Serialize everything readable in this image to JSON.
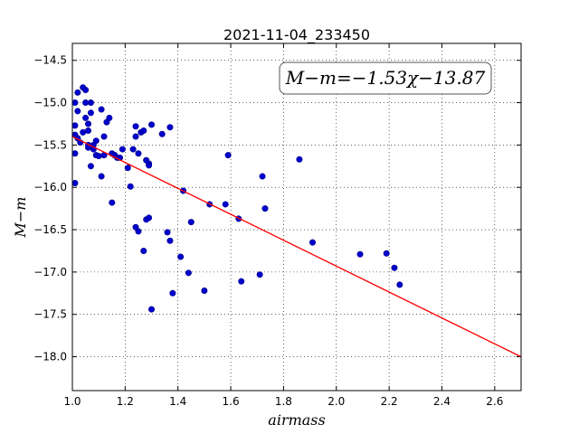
{
  "chart_data": {
    "type": "scatter",
    "title": "2021-11-04_233450",
    "xlabel": "airmass",
    "ylabel": "M−m",
    "xlim": [
      1.0,
      2.7
    ],
    "ylim": [
      -18.4,
      -14.3
    ],
    "y_inverted": true,
    "grid": true,
    "x_ticks": [
      1.0,
      1.2,
      1.4,
      1.6,
      1.8,
      2.0,
      2.2,
      2.4,
      2.6
    ],
    "x_tick_labels": [
      "1.0",
      "1.2",
      "1.4",
      "1.6",
      "1.8",
      "2.0",
      "2.2",
      "2.4",
      "2.6"
    ],
    "y_ticks": [
      -14.5,
      -15.0,
      -15.5,
      -16.0,
      -16.5,
      -17.0,
      -17.5,
      -18.0
    ],
    "y_tick_labels": [
      "−14.5",
      "−15.0",
      "−15.5",
      "−16.0",
      "−16.5",
      "−17.0",
      "−17.5",
      "−18.0"
    ],
    "annotation": "M−m=−1.53χ−13.87",
    "points_color": "#0000cc",
    "fit_color": "#ff0000",
    "fit": {
      "slope": -1.53,
      "intercept": -13.87,
      "x_range": [
        1.0,
        2.7
      ]
    },
    "x": [
      1.01,
      1.01,
      1.02,
      1.02,
      1.01,
      1.01,
      1.02,
      1.01,
      1.03,
      1.04,
      1.04,
      1.05,
      1.05,
      1.06,
      1.05,
      1.06,
      1.06,
      1.07,
      1.06,
      1.07,
      1.07,
      1.08,
      1.09,
      1.08,
      1.09,
      1.1,
      1.11,
      1.11,
      1.12,
      1.12,
      1.13,
      1.14,
      1.15,
      1.16,
      1.16,
      1.17,
      1.18,
      1.19,
      1.21,
      1.22,
      1.23,
      1.24,
      1.24,
      1.25,
      1.26,
      1.27,
      1.28,
      1.29,
      1.29,
      1.3,
      1.34,
      1.37,
      1.15,
      1.24,
      1.25,
      1.27,
      1.28,
      1.29,
      1.3,
      1.36,
      1.37,
      1.38,
      1.41,
      1.42,
      1.44,
      1.45,
      1.5,
      1.52,
      1.58,
      1.59,
      1.63,
      1.64,
      1.71,
      1.72,
      1.73,
      1.86,
      1.91,
      2.09,
      2.19,
      2.22,
      2.24
    ],
    "y": [
      -15.95,
      -15.0,
      -14.88,
      -15.1,
      -15.27,
      -15.38,
      -15.42,
      -15.6,
      -15.47,
      -15.35,
      -14.82,
      -14.85,
      -15.0,
      -15.53,
      -15.18,
      -15.33,
      -15.25,
      -15.12,
      -15.5,
      -15.75,
      -15.0,
      -15.5,
      -15.45,
      -15.55,
      -15.62,
      -15.63,
      -15.08,
      -15.87,
      -15.4,
      -15.62,
      -15.23,
      -15.18,
      -15.6,
      -15.62,
      -15.62,
      -15.65,
      -15.65,
      -15.55,
      -15.77,
      -15.99,
      -15.55,
      -15.28,
      -15.4,
      -15.6,
      -15.35,
      -15.33,
      -15.68,
      -15.72,
      -15.74,
      -15.26,
      -15.37,
      -15.29,
      -16.18,
      -16.47,
      -16.52,
      -16.75,
      -16.38,
      -16.36,
      -17.44,
      -16.53,
      -16.63,
      -17.25,
      -16.82,
      -16.04,
      -17.01,
      -16.41,
      -17.22,
      -16.2,
      -16.2,
      -15.62,
      -16.37,
      -17.11,
      -17.03,
      -15.87,
      -16.25,
      -15.67,
      -16.65,
      -16.79,
      -16.78,
      -16.95,
      -17.15
    ]
  }
}
